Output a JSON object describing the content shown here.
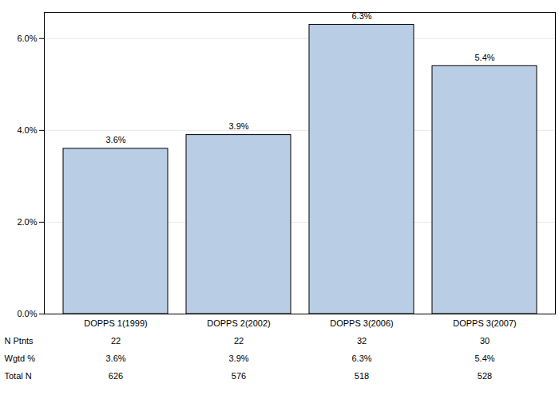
{
  "chart_data": {
    "type": "bar",
    "categories": [
      "DOPPS 1(1999)",
      "DOPPS 2(2002)",
      "DOPPS 3(2006)",
      "DOPPS 3(2007)"
    ],
    "values": [
      3.6,
      3.9,
      6.3,
      5.4
    ],
    "value_labels": [
      "3.6%",
      "3.9%",
      "6.3%",
      "5.4%"
    ],
    "data_labels": true,
    "color": "#b9cde5",
    "ylim": [
      0,
      6.57
    ],
    "yticks": [
      {
        "value": 0,
        "label": "0.0%"
      },
      {
        "value": 2,
        "label": "2.0%"
      },
      {
        "value": 4,
        "label": "4.0%"
      },
      {
        "value": 6,
        "label": "6.0%"
      }
    ],
    "grid": true,
    "table": {
      "rows": [
        {
          "label": "N Ptnts",
          "values": [
            22,
            22,
            32,
            30
          ]
        },
        {
          "label": "Wgtd %",
          "values": [
            3.6,
            3.9,
            6.3,
            5.4
          ],
          "value_labels": [
            "3.6%",
            "3.9%",
            "6.3%",
            "5.4%"
          ]
        },
        {
          "label": "Total N",
          "values": [
            626,
            576,
            518,
            528
          ]
        }
      ]
    }
  }
}
